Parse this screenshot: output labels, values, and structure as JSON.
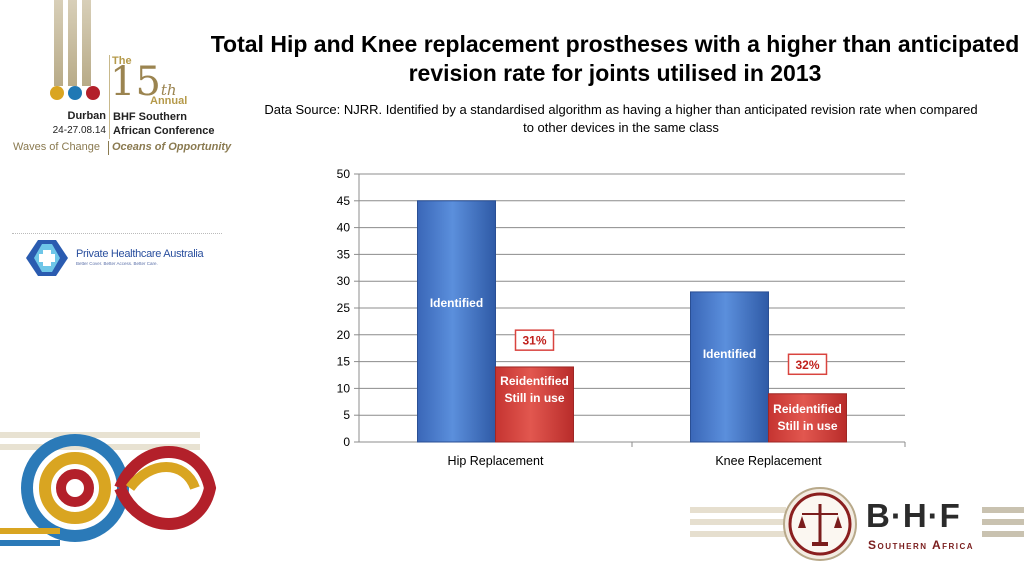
{
  "slide": {
    "title": "Total Hip and Knee replacement prostheses with a higher than anticipated revision rate for joints utilised in 2013",
    "subtitle": "Data Source: NJRR. Identified by a standardised algorithm as having a higher than anticipated revision rate when compared to other devices in the same class"
  },
  "conference": {
    "the": "The",
    "number": "15",
    "suffix": "th",
    "annual": "Annual",
    "city": "Durban",
    "dates": "24-27.08.14",
    "name_line1": "BHF Southern",
    "name_line2": "African Conference",
    "tagline_left": "Waves of Change",
    "tagline_right": "Oceans of Opportunity",
    "dot_colors": [
      "#d9a521",
      "#1f78b4",
      "#b3202a"
    ]
  },
  "pha_logo": {
    "name": "Private Healthcare Australia",
    "tagline": "Better Cover. Better Access. Better Care."
  },
  "bhf_logo": {
    "letters": "B·H·F",
    "subtitle": "Southern Africa"
  },
  "chart_data": {
    "type": "bar",
    "title": "",
    "xlabel": "",
    "ylabel": "",
    "ylim": [
      0,
      50
    ],
    "yticks": [
      0,
      5,
      10,
      15,
      20,
      25,
      30,
      35,
      40,
      45,
      50
    ],
    "categories": [
      "Hip Replacement",
      "Knee Replacement"
    ],
    "grid": true,
    "series": [
      {
        "color": "#4a7fcf",
        "values": [
          45,
          28
        ],
        "bar_labels": [
          "Identified",
          "Identified"
        ]
      },
      {
        "color": "#d9443f",
        "values": [
          14,
          9
        ],
        "bar_labels": [
          "Reidentified\nStill in use",
          "Reidentified\nStill in use"
        ]
      }
    ],
    "annotations": [
      {
        "category": "Hip Replacement",
        "text": "31%",
        "y": 19
      },
      {
        "category": "Knee Replacement",
        "text": "32%",
        "y": 14.5
      }
    ]
  }
}
